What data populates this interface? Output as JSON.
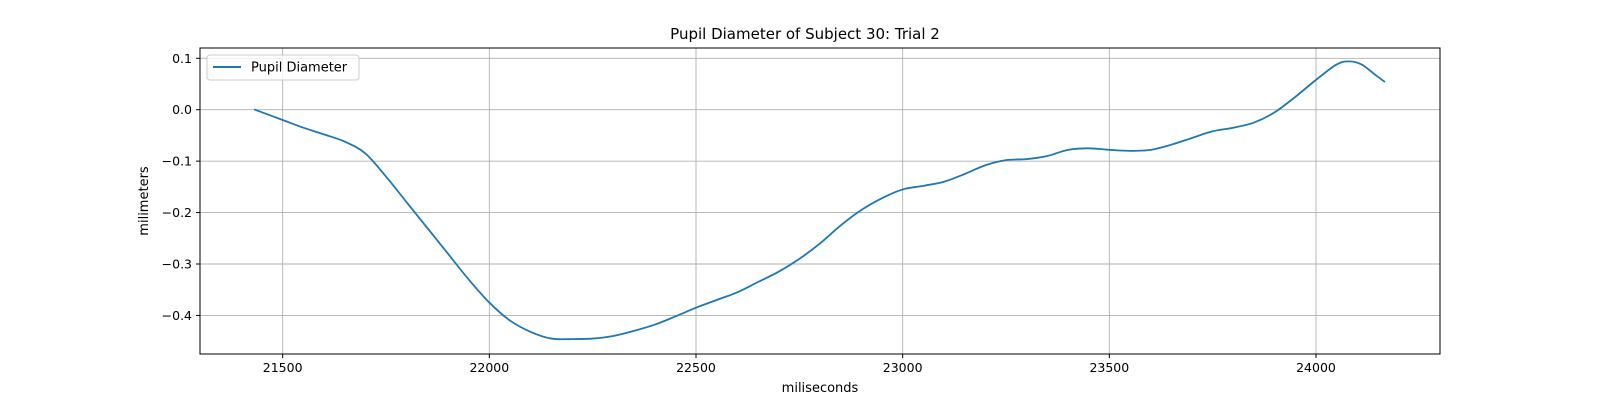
{
  "chart_data": {
    "type": "line",
    "title": "Pupil Diameter of Subject 30: Trial 2",
    "xlabel": "miliseconds",
    "ylabel": "milimeters",
    "xlim": [
      21300,
      24300
    ],
    "ylim": [
      -0.475,
      0.12
    ],
    "xticks": [
      21500,
      22000,
      22500,
      23000,
      23500,
      24000
    ],
    "yticks": [
      0.1,
      0.0,
      -0.1,
      -0.2,
      -0.3,
      -0.4
    ],
    "ytick_labels": [
      "0.1",
      "0.0",
      "−0.1",
      "−0.2",
      "−0.3",
      "−0.4"
    ],
    "grid": true,
    "legend_position": "top-left",
    "series": [
      {
        "name": "Pupil Diameter",
        "color": "#1f77b4",
        "x": [
          21433,
          21500,
          21550,
          21600,
          21650,
          21700,
          21750,
          21800,
          21850,
          21900,
          21950,
          22000,
          22050,
          22100,
          22150,
          22200,
          22250,
          22300,
          22350,
          22400,
          22450,
          22500,
          22550,
          22600,
          22650,
          22700,
          22750,
          22800,
          22850,
          22900,
          22950,
          23000,
          23050,
          23100,
          23150,
          23200,
          23250,
          23300,
          23350,
          23400,
          23450,
          23500,
          23550,
          23600,
          23650,
          23700,
          23750,
          23800,
          23850,
          23900,
          23950,
          24000,
          24050,
          24080,
          24110,
          24140,
          24165
        ],
        "y": [
          0.0,
          -0.02,
          -0.035,
          -0.048,
          -0.062,
          -0.085,
          -0.13,
          -0.18,
          -0.23,
          -0.28,
          -0.33,
          -0.375,
          -0.41,
          -0.432,
          -0.445,
          -0.446,
          -0.445,
          -0.44,
          -0.43,
          -0.418,
          -0.402,
          -0.385,
          -0.37,
          -0.355,
          -0.335,
          -0.315,
          -0.29,
          -0.26,
          -0.225,
          -0.195,
          -0.172,
          -0.155,
          -0.148,
          -0.14,
          -0.125,
          -0.108,
          -0.098,
          -0.096,
          -0.09,
          -0.078,
          -0.075,
          -0.078,
          -0.08,
          -0.078,
          -0.068,
          -0.055,
          -0.042,
          -0.035,
          -0.025,
          -0.005,
          0.025,
          0.058,
          0.088,
          0.094,
          0.088,
          0.07,
          0.055
        ]
      }
    ]
  }
}
